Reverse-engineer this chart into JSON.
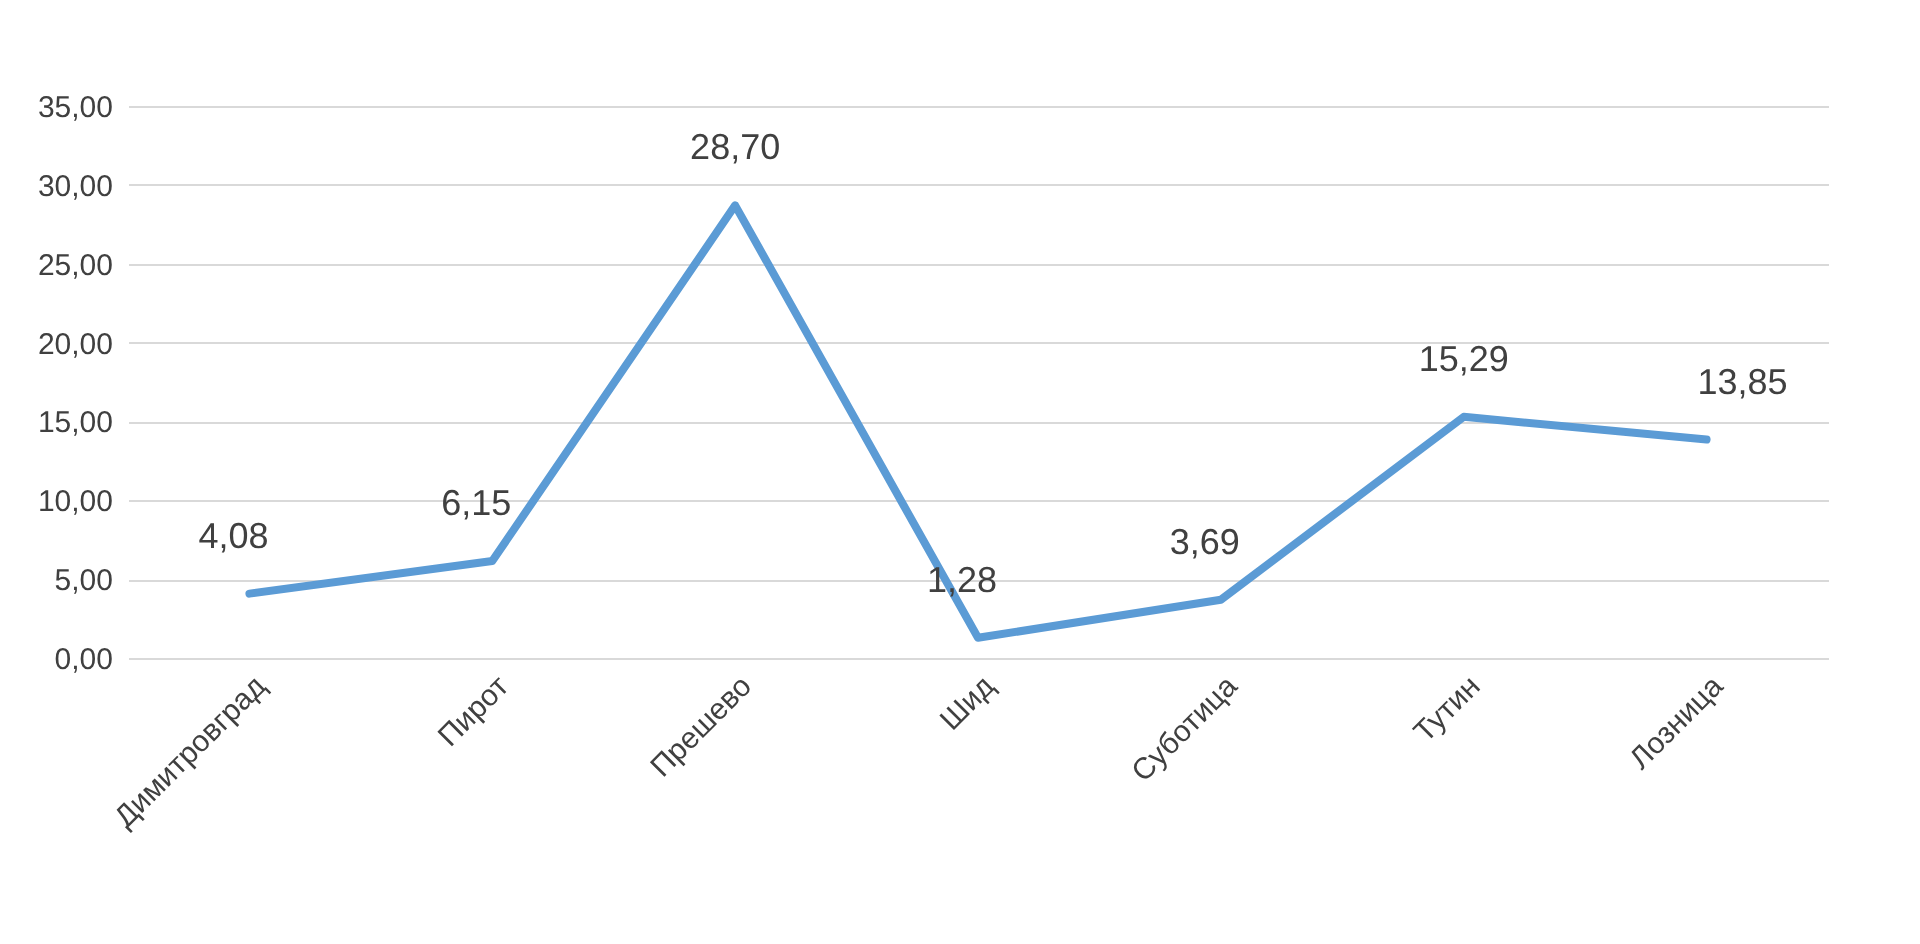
{
  "chart_data": {
    "type": "line",
    "categories": [
      "Димитровград",
      "Пирот",
      "Прешево",
      "Шид",
      "Суботица",
      "Тутин",
      "Лозница"
    ],
    "series": [
      {
        "color": "#5b9bd5",
        "values": [
          4.08,
          6.15,
          28.7,
          1.28,
          3.69,
          15.29,
          13.85
        ],
        "value_labels": [
          "4,08",
          "6,15",
          "28,70",
          "1,28",
          "3,69",
          "15,29",
          "13,85"
        ]
      }
    ],
    "ylim": [
      0,
      35
    ],
    "yticks": [
      {
        "value": 0,
        "label": "0,00"
      },
      {
        "value": 5,
        "label": "5,00"
      },
      {
        "value": 10,
        "label": "10,00"
      },
      {
        "value": 15,
        "label": "15,00"
      },
      {
        "value": 20,
        "label": "20,00"
      },
      {
        "value": 25,
        "label": "25,00"
      },
      {
        "value": 30,
        "label": "30,00"
      },
      {
        "value": 35,
        "label": "35,00"
      }
    ],
    "grid": "y",
    "marker": "none",
    "line_style": "solid"
  }
}
